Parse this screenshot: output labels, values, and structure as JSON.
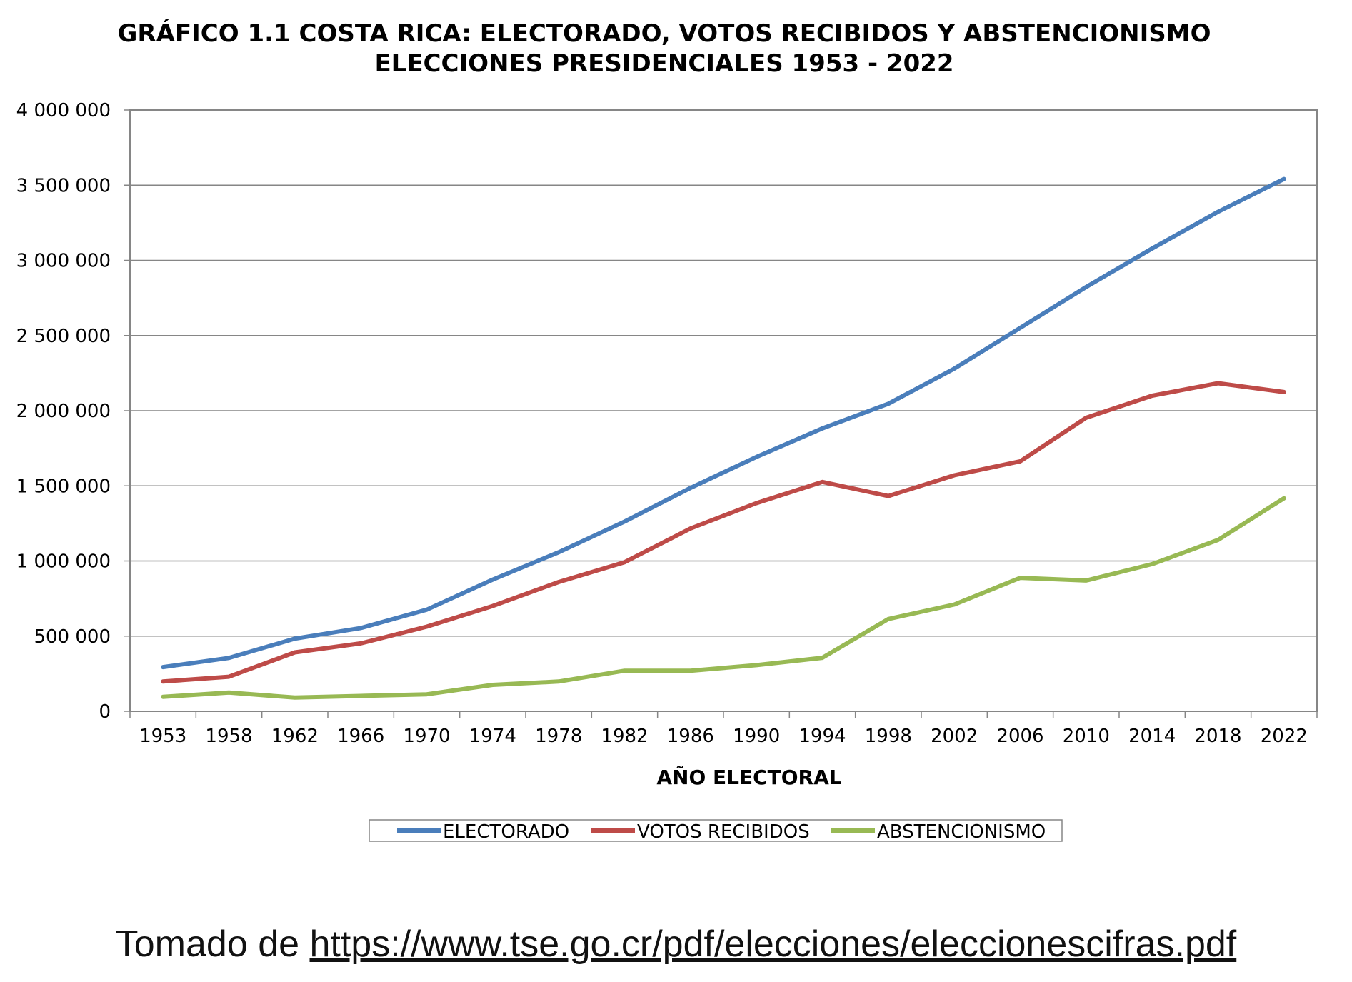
{
  "chart_data": {
    "type": "line",
    "title": "GRÁFICO 1.1 COSTA RICA: ELECTORADO, VOTOS RECIBIDOS Y ABSTENCIONISMO",
    "subtitle": "ELECCIONES PRESIDENCIALES 1953 - 2022",
    "xlabel": "AÑO ELECTORAL",
    "ylabel": "",
    "categories": [
      "1953",
      "1958",
      "1962",
      "1966",
      "1970",
      "1974",
      "1978",
      "1982",
      "1986",
      "1990",
      "1994",
      "1998",
      "2002",
      "2006",
      "2010",
      "2014",
      "2018",
      "2022"
    ],
    "ylim": [
      0,
      4000000
    ],
    "yticks": [
      0,
      500000,
      1000000,
      1500000,
      2000000,
      2500000,
      3000000,
      3500000,
      4000000
    ],
    "ytick_labels": [
      "0",
      "500 000",
      "1 000 000",
      "1 500 000",
      "2 000 000",
      "2 500 000",
      "3 000 000",
      "3 500 000",
      "4 000 000"
    ],
    "grid": true,
    "legend_position": "bottom",
    "series": [
      {
        "name": "ELECTORADO",
        "color": "#4a7ebb",
        "values": [
          294000,
          355000,
          483000,
          554000,
          676000,
          876000,
          1058000,
          1262000,
          1486000,
          1692000,
          1882000,
          2046000,
          2280000,
          2551000,
          2823000,
          3079000,
          3323000,
          3541000
        ]
      },
      {
        "name": "VOTOS RECIBIDOS",
        "color": "#be4b48",
        "values": [
          198000,
          230000,
          392000,
          452000,
          563000,
          700000,
          860000,
          992000,
          1216000,
          1385000,
          1526000,
          1432000,
          1570000,
          1663000,
          1953000,
          2100000,
          2183000,
          2124000
        ]
      },
      {
        "name": "ABSTENCIONISMO",
        "color": "#98b954",
        "values": [
          96000,
          125000,
          91000,
          102000,
          113000,
          176000,
          198000,
          270000,
          270000,
          307000,
          356000,
          614000,
          710000,
          888000,
          870000,
          979000,
          1140000,
          1417000
        ]
      }
    ]
  },
  "source": {
    "prefix": "Tomado de ",
    "link": "https://www.tse.go.cr/pdf/elecciones/eleccionescifras.pdf"
  }
}
